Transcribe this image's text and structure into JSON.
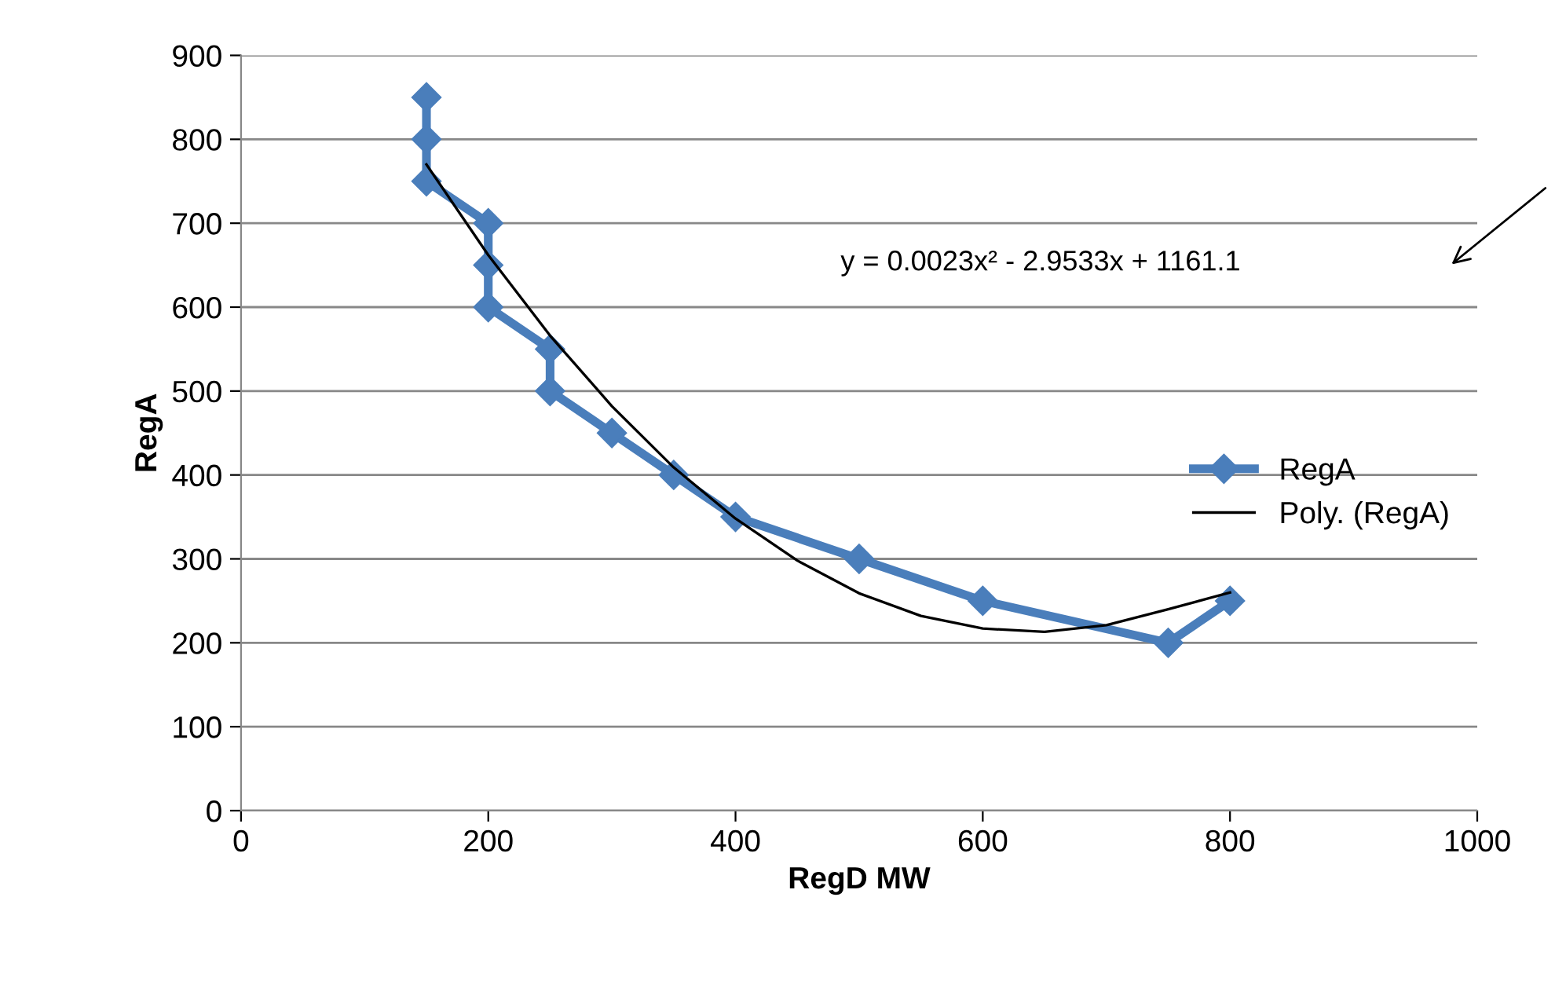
{
  "chart_data": {
    "type": "line",
    "xlabel": "RegD MW",
    "ylabel": "RegA",
    "xlim": [
      0,
      1000
    ],
    "xticks": [
      0,
      200,
      400,
      600,
      800,
      1000
    ],
    "ylim": [
      0,
      900
    ],
    "yticks": [
      0,
      100,
      200,
      300,
      400,
      500,
      600,
      700,
      800,
      900
    ],
    "grid": "y",
    "legend": "right",
    "series": [
      {
        "name": "RegA",
        "color": "#4a7ebb",
        "marker": "diamond",
        "line_style": "solid",
        "x": [
          150,
          150,
          150,
          200,
          200,
          200,
          250,
          250,
          300,
          350,
          400,
          500,
          600,
          750,
          800
        ],
        "values": [
          850,
          800,
          750,
          700,
          650,
          600,
          550,
          500,
          450,
          400,
          350,
          300,
          250,
          200,
          250
        ]
      },
      {
        "name": "Poly. (RegA)",
        "color": "#000000",
        "marker": "none",
        "line_style": "solid",
        "x": [
          150,
          200,
          250,
          300,
          350,
          400,
          450,
          500,
          550,
          600,
          650,
          700,
          750,
          800
        ],
        "values": [
          770,
          662,
          566,
          482,
          409,
          348,
          298,
          259,
          232,
          217,
          213,
          221,
          240,
          260
        ]
      }
    ],
    "annotations": [
      "y = 0.0023x² - 2.9533x + 1161.1"
    ]
  }
}
